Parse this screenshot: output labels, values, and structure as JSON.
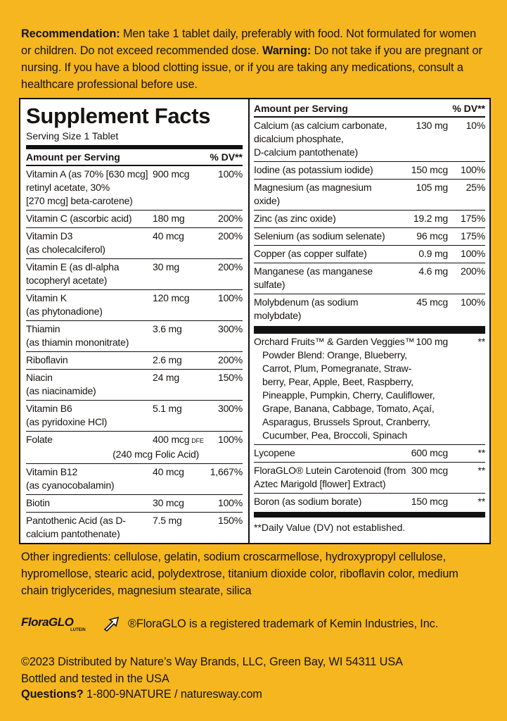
{
  "recommendation": {
    "label": "Recommendation:",
    "text": "Men take 1 tablet daily, preferably with food.  Not formulated for women or children. Do not exceed recommended dose.",
    "warning_label": "Warning:",
    "warning_text": "Do not take if you are pregnant or nursing. If you have a blood clotting issue, or if you are taking any medications, consult a healthcare professional before use."
  },
  "facts": {
    "title": "Supplement Facts",
    "serving_size": "Serving Size 1 Tablet",
    "left_header": {
      "amount": "Amount per Serving",
      "dv": "% DV**"
    },
    "left_rows": [
      {
        "name": [
          "Vitamin A (as 70% [630 mcg]",
          "retinyl acetate, 30%",
          "[270 mcg] beta-carotene)"
        ],
        "amount": "900 mcg",
        "dv": "100%"
      },
      {
        "name": [
          "Vitamin C (ascorbic acid)"
        ],
        "amount": "180 mg",
        "dv": "200%"
      },
      {
        "name": [
          "Vitamin D3",
          "(as cholecalciferol)"
        ],
        "amount": "40 mcg",
        "dv": "200%"
      },
      {
        "name": [
          "Vitamin E (as dl-alpha",
          "tocopheryl acetate)"
        ],
        "amount": "30 mg",
        "dv": "200%"
      },
      {
        "name": [
          "Vitamin K",
          "(as phytonadione)"
        ],
        "amount": "120 mcg",
        "dv": "100%"
      },
      {
        "name": [
          "Thiamin",
          "(as thiamin mononitrate)"
        ],
        "amount": "3.6 mg",
        "dv": "300%"
      },
      {
        "name": [
          "Riboflavin"
        ],
        "amount": "2.6 mg",
        "dv": "200%"
      },
      {
        "name": [
          "Niacin",
          "(as niacinamide)"
        ],
        "amount": "24 mg",
        "dv": "150%"
      },
      {
        "name": [
          "Vitamin B6",
          "(as pyridoxine HCl)"
        ],
        "amount": "5.1 mg",
        "dv": "300%"
      },
      {
        "name": [
          "Folate"
        ],
        "amount": "400 mcg",
        "amount_note": "DFE",
        "amount_detail": "(240 mcg Folic Acid)",
        "dv": "100%"
      },
      {
        "name": [
          "Vitamin B12",
          "(as cyanocobalamin)"
        ],
        "amount": "40 mcg",
        "dv": "1,667%"
      },
      {
        "name": [
          "Biotin"
        ],
        "amount": "30 mcg",
        "dv": "100%"
      },
      {
        "name": [
          "Pantothenic Acid (as D-",
          "calcium pantothenate)"
        ],
        "amount": "7.5 mg",
        "dv": "150%"
      }
    ],
    "right_header": {
      "amount": "Amount per Serving",
      "dv": "% DV**"
    },
    "right_rows": [
      {
        "name": [
          "Calcium (as calcium carbonate,",
          "dicalcium phosphate,",
          "D-calcium pantothenate)"
        ],
        "amount": "130 mg",
        "dv": "10%"
      },
      {
        "name": [
          "Iodine (as potassium iodide)"
        ],
        "amount": "150 mcg",
        "dv": "100%"
      },
      {
        "name": [
          "Magnesium (as magnesium",
          "oxide)"
        ],
        "amount": "105 mg",
        "dv": "25%"
      },
      {
        "name": [
          "Zinc (as zinc oxide)"
        ],
        "amount": "19.2 mg",
        "dv": "175%"
      },
      {
        "name": [
          "Selenium (as sodium selenate)"
        ],
        "amount": "96 mcg",
        "dv": "175%"
      },
      {
        "name": [
          "Copper (as copper sulfate)"
        ],
        "amount": "0.9 mg",
        "dv": "100%"
      },
      {
        "name": [
          "Manganese (as manganese",
          "sulfate)"
        ],
        "amount": "4.6 mg",
        "dv": "200%"
      },
      {
        "name": [
          "Molybdenum (as sodium",
          "molybdate)"
        ],
        "amount": "45 mcg",
        "dv": "100%"
      }
    ],
    "blend": {
      "name": [
        "Orchard Fruits™ & Garden Veggies™",
        "Powder Blend: Orange, Blueberry,",
        "Carrot, Plum, Pomegranate, Straw-",
        "berry, Pear, Apple, Beet, Raspberry,",
        "Pineapple, Pumpkin, Cherry, Cauliflower,",
        "Grape, Banana, Cabbage, Tomato, Açaí,",
        "Asparagus, Brussels Sprout, Cranberry,",
        "Cucumber, Pea, Broccoli, Spinach"
      ],
      "amount": "100 mg",
      "dv": "**"
    },
    "other_rows": [
      {
        "name": [
          "Lycopene"
        ],
        "amount": "600 mcg",
        "dv": "**"
      },
      {
        "name": [
          "FloraGLO® Lutein Carotenoid (from",
          "Aztec Marigold [flower] Extract)"
        ],
        "amount": "300 mcg",
        "dv": "**"
      },
      {
        "name": [
          "Boron (as sodium borate)"
        ],
        "amount": "150 mcg",
        "dv": "**"
      }
    ],
    "footnote": "**Daily Value (DV) not established."
  },
  "other_ingredients": "Other ingredients: cellulose, gelatin, sodium croscarmellose, hydroxypropyl cellulose, hypromellose, stearic acid, polydextrose, titanium dioxide color, riboflavin color, medium chain triglycerides, magnesium stearate, silica",
  "logo": {
    "name": "FloraGLO",
    "sub": "LUTEIN"
  },
  "trademark": "®FloraGLO is a registered trademark of Kemin Industries, Inc.",
  "footer": {
    "distributed": "©2023 Distributed by Nature’s Way Brands, LLC, Green Bay, WI 54311 USA",
    "bottled": "Bottled and tested in the USA",
    "questions_label": "Questions?",
    "questions_text": "1-800-9NATURE / naturesway.com"
  }
}
